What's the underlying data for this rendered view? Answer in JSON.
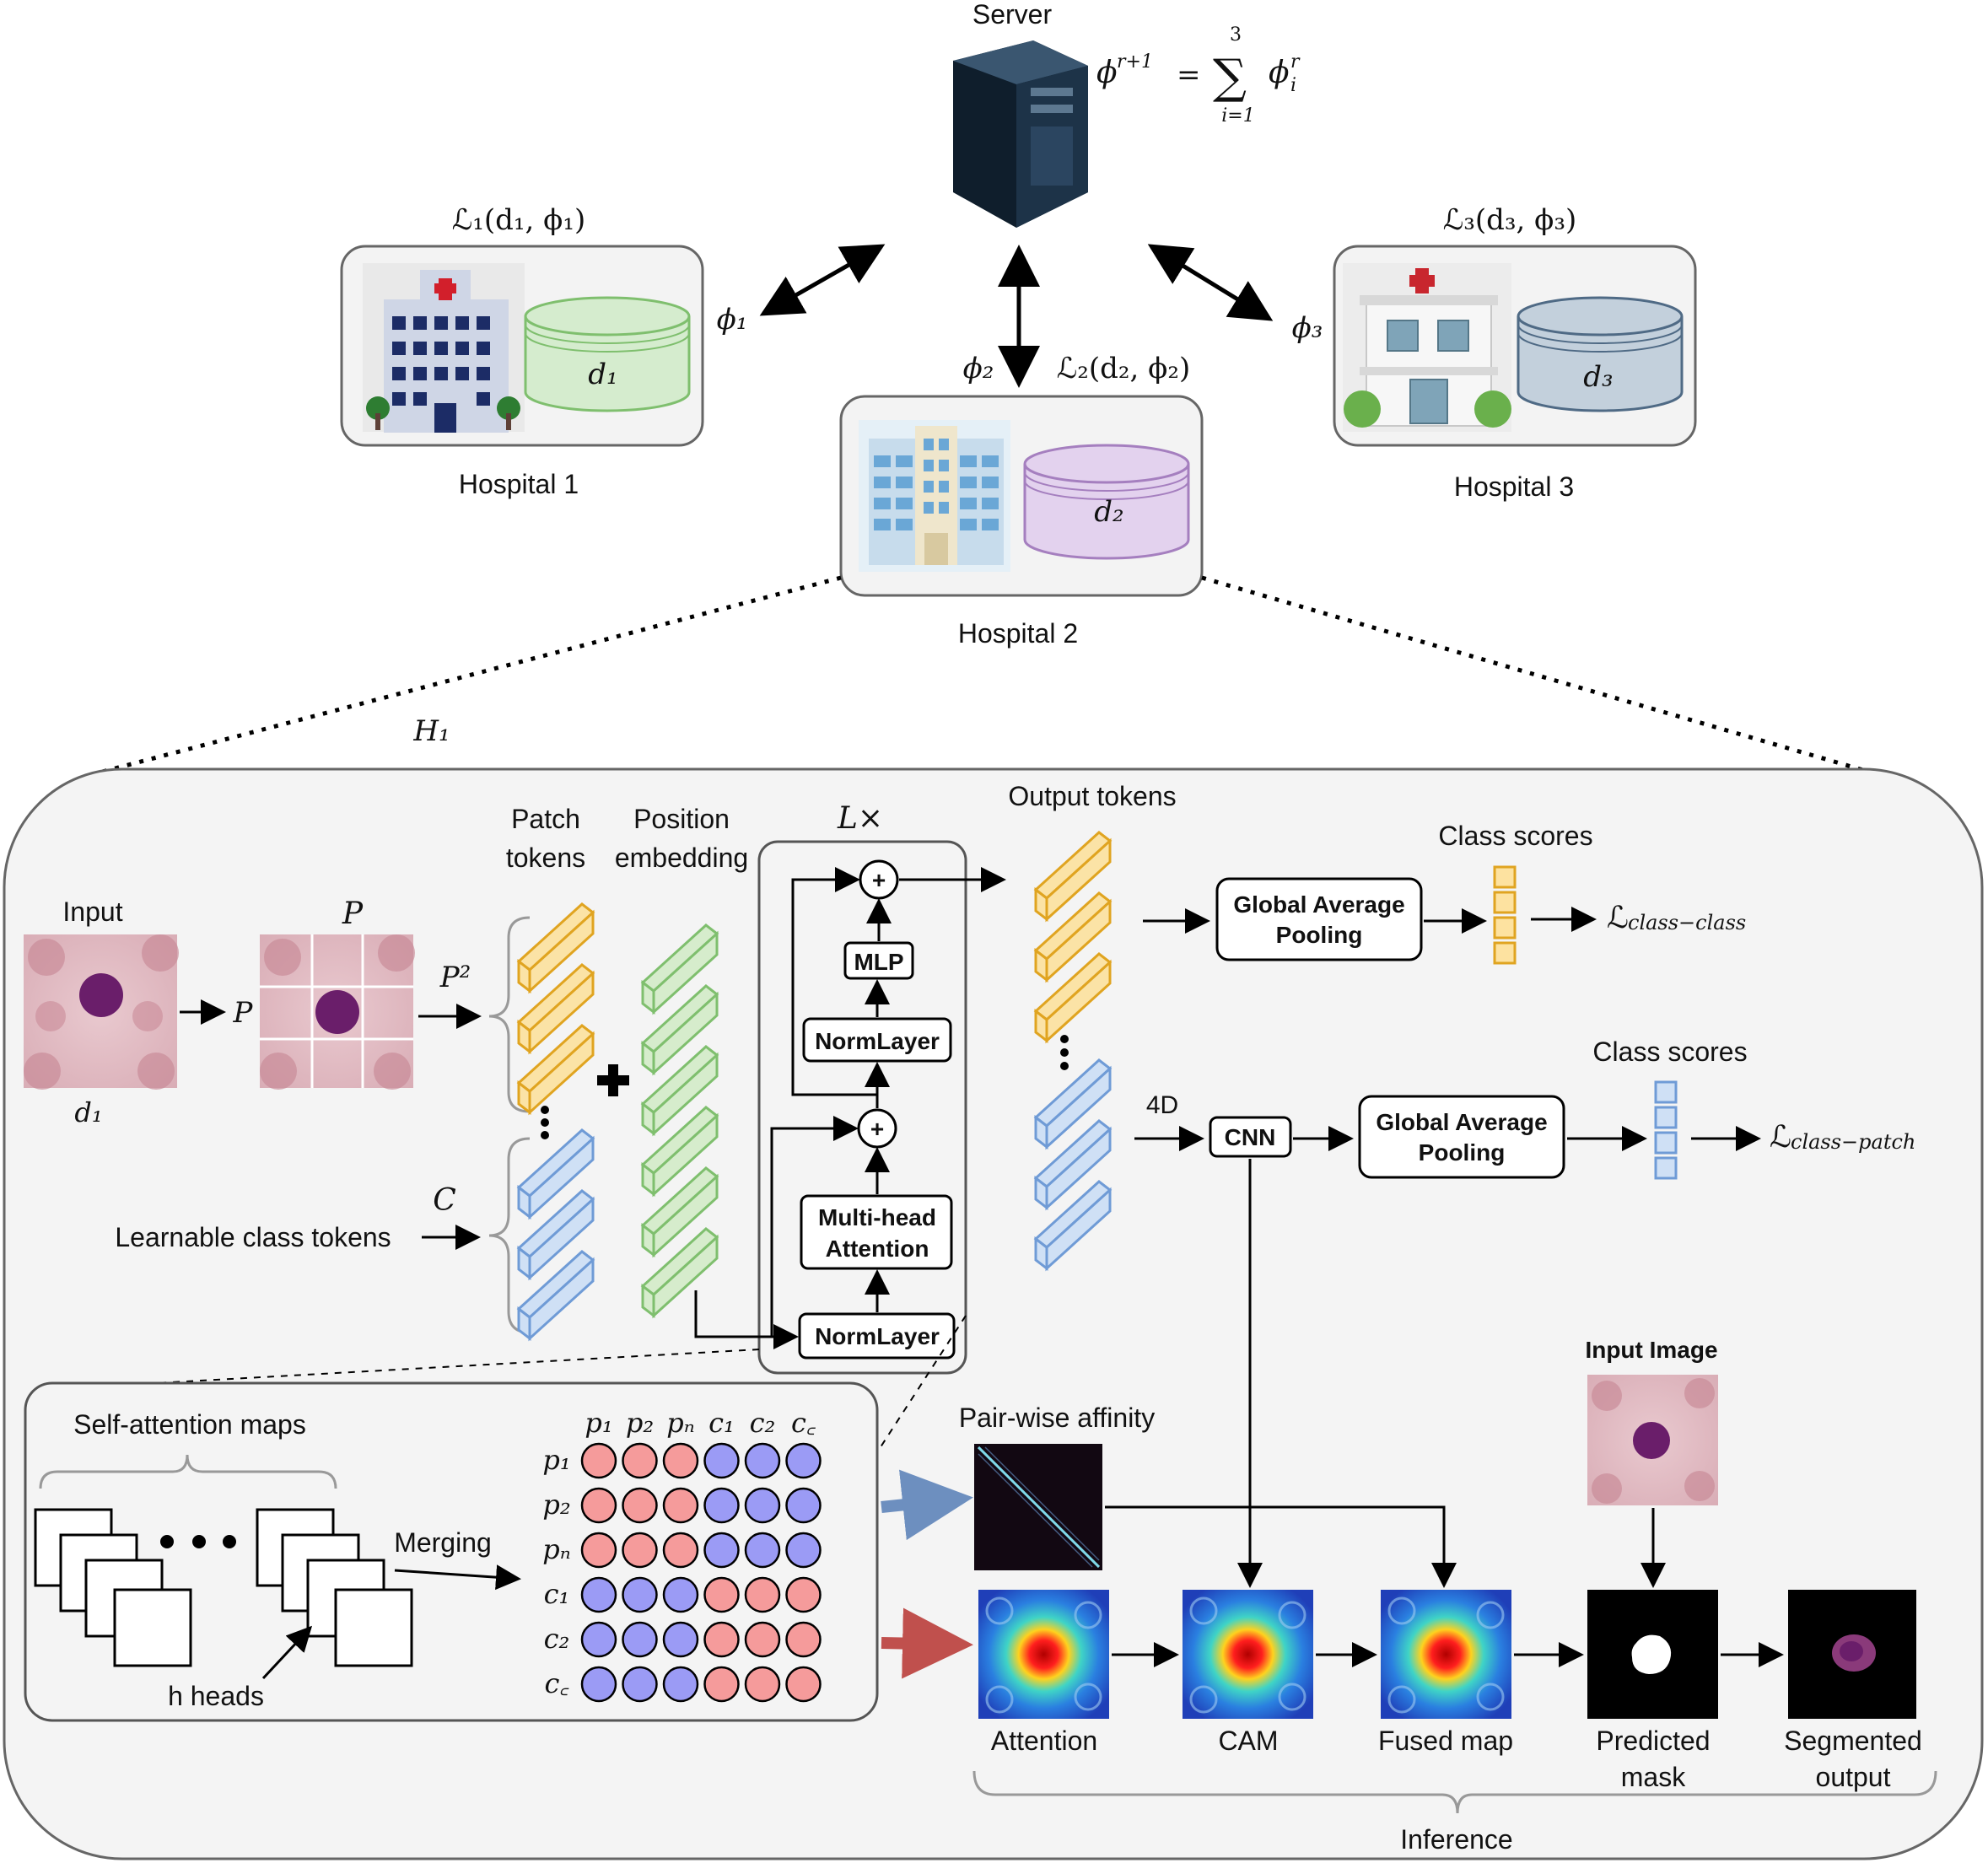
{
  "server": {
    "label": "Server",
    "formula_left": "ϕ",
    "formula_sup": "r+1",
    "formula_eq": "=",
    "formula_sum": "∑",
    "formula_sum_top": "3",
    "formula_sum_bottom": "i=1",
    "formula_term": "ϕ",
    "formula_term_sub": "i",
    "formula_term_sup": "r"
  },
  "hospitals": [
    {
      "label": "Hospital 1",
      "loss": "ℒ₁(d₁, ϕ₁)",
      "param": "ϕ₁",
      "data": "d₁",
      "db_color": "#d5ecce",
      "db_stroke": "#7fbf6e"
    },
    {
      "label": "Hospital 2",
      "loss": "ℒ₂(d₂, ϕ₂)",
      "param": "ϕ₂",
      "data": "d₂",
      "db_color": "#e3d2ee",
      "db_stroke": "#a57fbf"
    },
    {
      "label": "Hospital 3",
      "loss": "ℒ₃(d₃, ϕ₃)",
      "param": "ϕ₃",
      "data": "d₃",
      "db_color": "#c3d0dc",
      "db_stroke": "#4f6a85"
    }
  ],
  "detail": {
    "label": "H₁",
    "input_label": "Input",
    "input_data": "d₁",
    "patch_symbol": "P",
    "patch_arrow_label": "P",
    "p_squared": "P²",
    "c_symbol": "C",
    "learnable_tokens": "Learnable class tokens",
    "patch_tokens_line1": "Patch",
    "patch_tokens_line2": "tokens",
    "position_line1": "Position",
    "position_line2": "embedding",
    "repeat": "L×",
    "plus": "+",
    "mlp": "MLP",
    "norm_top": "NormLayer",
    "mha_line1": "Multi-head",
    "mha_line2": "Attention",
    "norm_bottom": "NormLayer",
    "output_tokens": "Output tokens",
    "gap1_line1": "Global Average",
    "gap1_line2": "Pooling",
    "class_scores_1": "Class scores",
    "loss_class_class": "ℒ",
    "loss_class_class_sub": "class−class",
    "four_d": "4D",
    "cnn": "CNN",
    "gap2_line1": "Global Average",
    "gap2_line2": "Pooling",
    "class_scores_2": "Class scores",
    "loss_class_patch": "ℒ",
    "loss_class_patch_sub": "class−patch",
    "self_attn_maps": "Self-attention maps",
    "merging": "Merging",
    "h_heads": "h heads",
    "matrix_cols": [
      "p₁",
      "p₂",
      "p_N",
      "c₁",
      "c₂",
      "c_C"
    ],
    "matrix_rows": [
      "p₁",
      "p₂",
      "p_N",
      "c₁",
      "c₂",
      "c_C"
    ],
    "pairwise": "Pair-wise affinity",
    "input_image": "Input Image",
    "attention": "Attention",
    "cam": "CAM",
    "fused": "Fused map",
    "pred_line1": "Predicted",
    "pred_line2": "mask",
    "seg_line1": "Segmented",
    "seg_line2": "output",
    "inference": "Inference"
  },
  "colors": {
    "patch_token": "#fbe3a6",
    "patch_token_stroke": "#e0a420",
    "class_token": "#cfe0f5",
    "class_token_stroke": "#6f9bd6",
    "pos_token": "#d6eccc",
    "pos_token_stroke": "#7fbf6e",
    "red_node": "#f59b9b",
    "blue_node": "#9b9bf5",
    "blue_arrow": "#6d8fbf",
    "red_arrow": "#c0504d"
  }
}
